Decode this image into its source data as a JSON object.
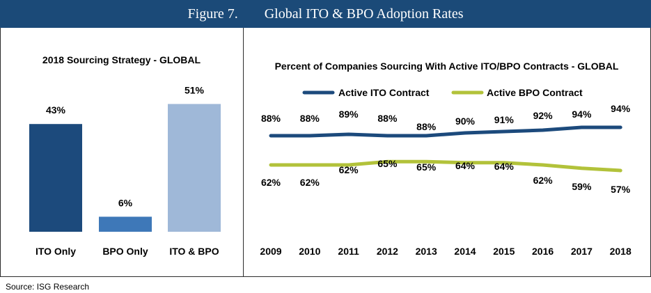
{
  "figure": {
    "number": "Figure 7.",
    "title": "Global ITO & BPO Adoption Rates",
    "source": "Source: ISG Research"
  },
  "colors": {
    "header_bg": "#1b4a78",
    "ito_only": "#1c4a7c",
    "bpo_only": "#3e78b8",
    "ito_bpo": "#9fb8d8",
    "active_ito": "#1c4a7c",
    "active_bpo": "#b2c23a"
  },
  "chart_data": [
    {
      "type": "bar",
      "title": "2018 Sourcing Strategy - GLOBAL",
      "categories": [
        "ITO Only",
        "BPO Only",
        "ITO & BPO"
      ],
      "values": [
        43,
        6,
        51
      ],
      "value_labels": [
        "43%",
        "6%",
        "51%"
      ],
      "ylim": [
        0,
        60
      ],
      "grid": false,
      "legend": "none"
    },
    {
      "type": "line",
      "title": "Percent of Companies Sourcing With Active ITO/BPO Contracts - GLOBAL",
      "x": [
        "2009",
        "2010",
        "2011",
        "2012",
        "2013",
        "2014",
        "2015",
        "2016",
        "2017",
        "2018"
      ],
      "series": [
        {
          "name": "Active ITO Contract",
          "values": [
            88,
            88,
            89,
            88,
            88,
            90,
            91,
            92,
            94,
            94
          ],
          "labels": [
            "88%",
            "88%",
            "89%",
            "88%",
            "88%",
            "90%",
            "91%",
            "92%",
            "94%",
            "94%"
          ]
        },
        {
          "name": "Active BPO Contract",
          "values": [
            62,
            62,
            62,
            65,
            65,
            64,
            64,
            62,
            59,
            57
          ],
          "labels": [
            "62%",
            "62%",
            "62%",
            "65%",
            "65%",
            "64%",
            "64%",
            "62%",
            "59%",
            "57%"
          ]
        }
      ],
      "grid": false,
      "legend": "top-center"
    }
  ]
}
